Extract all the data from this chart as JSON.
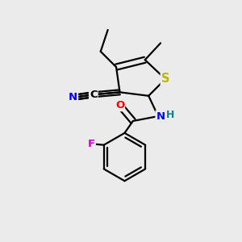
{
  "bg_color": "#ebebeb",
  "bond_color": "#000000",
  "bond_width": 1.6,
  "atom_colors": {
    "S": "#b8b800",
    "N": "#0000ff",
    "O": "#ff0000",
    "F": "#cc00cc",
    "C": "#000000",
    "H": "#008888"
  },
  "font_size": 9.5
}
